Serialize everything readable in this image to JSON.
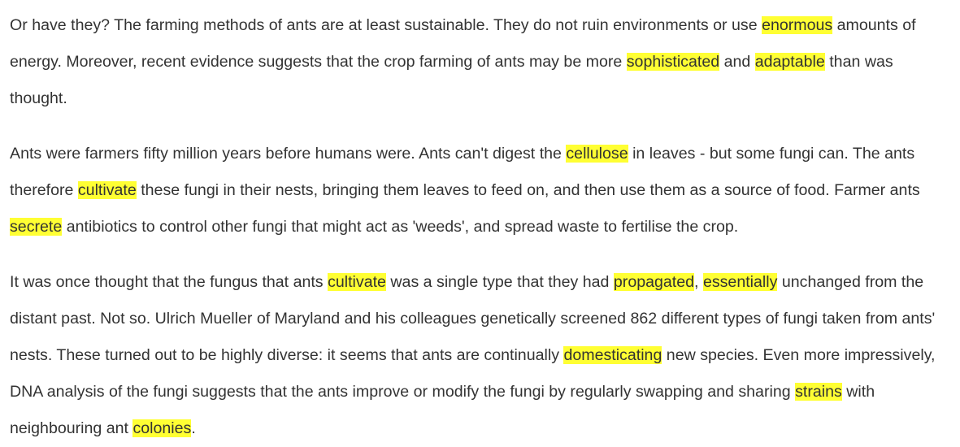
{
  "highlight_color": "#ffff33",
  "text_color": "#333333",
  "paragraphs": [
    {
      "segments": [
        {
          "t": "Or have they? The farming methods of ants are at least sustainable. They do not ruin environments or use "
        },
        {
          "t": "enormous",
          "hl": true
        },
        {
          "t": " amounts of energy. Moreover, recent evidence suggests that the crop farming of ants may be more "
        },
        {
          "t": "sophisticated",
          "hl": true
        },
        {
          "t": " and "
        },
        {
          "t": "adaptable",
          "hl": true
        },
        {
          "t": " than was thought."
        }
      ]
    },
    {
      "segments": [
        {
          "t": "Ants were farmers fifty million years before humans were. Ants can't digest the "
        },
        {
          "t": "cellulose",
          "hl": true
        },
        {
          "t": " in leaves - but some fungi can. The ants therefore "
        },
        {
          "t": "cultivate",
          "hl": true
        },
        {
          "t": " these fungi in their nests, bringing them leaves to feed on, and then use them as a source of food. Farmer ants "
        },
        {
          "t": "secrete",
          "hl": true
        },
        {
          "t": " antibiotics to control other fungi that might act as 'weeds', and spread waste to fertilise the crop."
        }
      ]
    },
    {
      "segments": [
        {
          "t": "It was once thought that the fungus that ants "
        },
        {
          "t": "cultivate",
          "hl": true
        },
        {
          "t": " was a single type that they had "
        },
        {
          "t": "propagated",
          "hl": true
        },
        {
          "t": ", "
        },
        {
          "t": "essentially",
          "hl": true
        },
        {
          "t": " unchanged from the distant past. Not so. Ulrich Mueller of Maryland and his colleagues genetically screened 862 different types of fungi taken from ants' nests. These turned out to be highly diverse: it seems that ants are continually "
        },
        {
          "t": "domesticating",
          "hl": true
        },
        {
          "t": " new species. Even more impressively, DNA analysis of the fungi suggests that the ants improve or modify the fungi by regularly swapping and sharing "
        },
        {
          "t": "strains",
          "hl": true
        },
        {
          "t": " with neighbouring ant "
        },
        {
          "t": "colonies",
          "hl": true
        },
        {
          "t": "."
        }
      ]
    }
  ]
}
